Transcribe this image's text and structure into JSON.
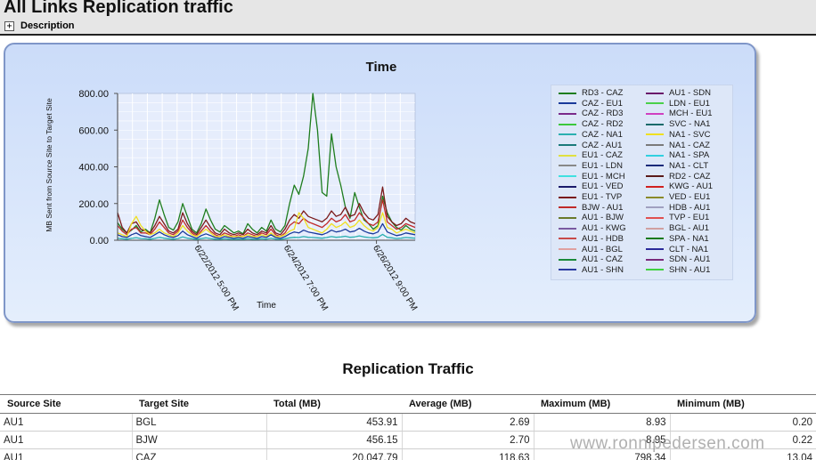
{
  "page": {
    "title": "All Links Replication traffic",
    "description_label": "Description",
    "description_toggle_symbol": "+"
  },
  "watermark": "www.ronnipedersen.com",
  "chart_data": {
    "type": "line",
    "title": "Time",
    "xlabel": "Time",
    "ylabel": "MB Sent from Source Site to Target Site",
    "ylim": [
      0,
      800
    ],
    "y_ticks": [
      "800.00",
      "600.00",
      "400.00",
      "200.00",
      "0.00"
    ],
    "x_tick_labels": [
      "6/22/2012 5:00 PM",
      "6/24/2012 7:00 PM",
      "6/26/2012 9:00 PM"
    ],
    "legend_position": "right",
    "legend": [
      {
        "name": "RD3 - CAZ",
        "color": "#1e7d1e"
      },
      {
        "name": "CAZ - EU1",
        "color": "#1a3a9a"
      },
      {
        "name": "CAZ - RD3",
        "color": "#7a2a8a"
      },
      {
        "name": "CAZ - RD2",
        "color": "#3cc83c"
      },
      {
        "name": "CAZ - NA1",
        "color": "#2ab0b0"
      },
      {
        "name": "CAZ - AU1",
        "color": "#1a7a7a"
      },
      {
        "name": "EU1 - CAZ",
        "color": "#e0e040"
      },
      {
        "name": "EU1 - LDN",
        "color": "#888888"
      },
      {
        "name": "EU1 - MCH",
        "color": "#40e0e0"
      },
      {
        "name": "EU1 - VED",
        "color": "#1a1a6a"
      },
      {
        "name": "EU1 - TVP",
        "color": "#7a1a1a"
      },
      {
        "name": "BJW - AU1",
        "color": "#c02a2a"
      },
      {
        "name": "AU1 - BJW",
        "color": "#6a7a2a"
      },
      {
        "name": "AU1 - KWG",
        "color": "#7a5aa0"
      },
      {
        "name": "AU1 - HDB",
        "color": "#c84a4a"
      },
      {
        "name": "AU1 - BGL",
        "color": "#e0a0a0"
      },
      {
        "name": "AU1 - CAZ",
        "color": "#1a8a3a"
      },
      {
        "name": "AU1 - SHN",
        "color": "#2a3aa0"
      },
      {
        "name": "AU1 - SDN",
        "color": "#6a1a6a"
      },
      {
        "name": "LDN - EU1",
        "color": "#4ad04a"
      },
      {
        "name": "MCH - EU1",
        "color": "#d040c0"
      },
      {
        "name": "SVC - NA1",
        "color": "#1a6a6a"
      },
      {
        "name": "NA1 - SVC",
        "color": "#f0e020"
      },
      {
        "name": "NA1 - CAZ",
        "color": "#7a7a7a"
      },
      {
        "name": "NA1 - SPA",
        "color": "#30d0e0"
      },
      {
        "name": "NA1 - CLT",
        "color": "#1a2a7a"
      },
      {
        "name": "RD2 - CAZ",
        "color": "#5a1a1a"
      },
      {
        "name": "KWG - AU1",
        "color": "#d02020"
      },
      {
        "name": "VED - EU1",
        "color": "#8a8a2a"
      },
      {
        "name": "HDB - AU1",
        "color": "#a0a0c0"
      },
      {
        "name": "TVP - EU1",
        "color": "#e05050"
      },
      {
        "name": "BGL - AU1",
        "color": "#d0a0a0"
      },
      {
        "name": "SPA - NA1",
        "color": "#1a7a1a"
      },
      {
        "name": "CLT - NA1",
        "color": "#2a2a9a"
      },
      {
        "name": "SDN - AU1",
        "color": "#7a2a7a"
      },
      {
        "name": "SHN - AU1",
        "color": "#40d040"
      }
    ],
    "series": [
      {
        "name": "RD3 - CAZ",
        "color": "#1e7d1e",
        "values": [
          95,
          60,
          40,
          55,
          80,
          45,
          60,
          40,
          120,
          220,
          140,
          70,
          55,
          100,
          200,
          130,
          60,
          40,
          90,
          170,
          110,
          60,
          45,
          80,
          60,
          40,
          50,
          35,
          90,
          60,
          40,
          70,
          50,
          110,
          60,
          45,
          80,
          200,
          300,
          250,
          350,
          500,
          800,
          600,
          260,
          240,
          580,
          400,
          300,
          180,
          120,
          260,
          180,
          110,
          90,
          60,
          80,
          240,
          150,
          100,
          70,
          55,
          80,
          60,
          50
        ]
      },
      {
        "name": "EU1 - TVP",
        "color": "#7a1a1a",
        "values": [
          150,
          70,
          40,
          90,
          100,
          60,
          50,
          40,
          80,
          130,
          90,
          50,
          40,
          60,
          150,
          90,
          50,
          30,
          70,
          110,
          70,
          40,
          30,
          60,
          40,
          30,
          40,
          30,
          60,
          40,
          30,
          50,
          40,
          80,
          40,
          30,
          60,
          110,
          140,
          120,
          160,
          130,
          120,
          110,
          100,
          120,
          160,
          130,
          140,
          180,
          130,
          140,
          200,
          150,
          120,
          110,
          140,
          290,
          130,
          100,
          80,
          90,
          120,
          100,
          90
        ]
      },
      {
        "name": "BJW - AU1",
        "color": "#c02a2a",
        "values": [
          80,
          50,
          30,
          60,
          70,
          40,
          40,
          30,
          60,
          100,
          70,
          40,
          30,
          50,
          110,
          70,
          40,
          20,
          50,
          80,
          50,
          30,
          20,
          40,
          30,
          20,
          30,
          20,
          40,
          30,
          20,
          40,
          30,
          60,
          30,
          20,
          40,
          80,
          100,
          90,
          120,
          100,
          90,
          80,
          70,
          90,
          120,
          100,
          110,
          140,
          100,
          110,
          150,
          120,
          90,
          80,
          100,
          220,
          100,
          80,
          60,
          70,
          90,
          80,
          70
        ]
      },
      {
        "name": "NA1 - SVC",
        "color": "#f0e020",
        "values": [
          40,
          30,
          20,
          90,
          130,
          80,
          50,
          30,
          40,
          60,
          40,
          30,
          20,
          40,
          80,
          50,
          30,
          20,
          40,
          60,
          40,
          20,
          20,
          30,
          20,
          20,
          20,
          20,
          30,
          20,
          20,
          30,
          20,
          40,
          20,
          20,
          30,
          50,
          60,
          150,
          120,
          70,
          60,
          50,
          40,
          60,
          90,
          70,
          80,
          100,
          70,
          80,
          110,
          80,
          60,
          50,
          70,
          150,
          70,
          60,
          40,
          50,
          60,
          50,
          40
        ]
      },
      {
        "name": "CAZ - EU1",
        "color": "#1a3a9a",
        "values": [
          30,
          20,
          15,
          30,
          40,
          25,
          20,
          15,
          30,
          45,
          30,
          20,
          15,
          25,
          50,
          30,
          20,
          10,
          25,
          35,
          25,
          15,
          10,
          20,
          15,
          10,
          15,
          10,
          20,
          15,
          10,
          20,
          15,
          30,
          15,
          10,
          20,
          35,
          45,
          40,
          55,
          45,
          40,
          35,
          30,
          40,
          55,
          45,
          50,
          60,
          45,
          50,
          65,
          50,
          40,
          35,
          45,
          90,
          45,
          35,
          25,
          30,
          40,
          35,
          30
        ]
      },
      {
        "name": "CAZ - NA1",
        "color": "#2ab0b0",
        "values": [
          10,
          8,
          6,
          10,
          14,
          9,
          8,
          6,
          10,
          16,
          11,
          8,
          6,
          9,
          18,
          11,
          8,
          5,
          9,
          13,
          9,
          6,
          5,
          8,
          6,
          5,
          6,
          5,
          8,
          6,
          5,
          8,
          6,
          11,
          6,
          5,
          8,
          13,
          16,
          15,
          20,
          16,
          15,
          13,
          11,
          15,
          20,
          16,
          18,
          22,
          16,
          18,
          24,
          18,
          15,
          13,
          16,
          32,
          16,
          13,
          9,
          11,
          15,
          13,
          11
        ]
      }
    ]
  },
  "table": {
    "title": "Replication Traffic",
    "columns": [
      "Source Site",
      "Target Site",
      "Total (MB)",
      "Average (MB)",
      "Maximum (MB)",
      "Minimum (MB)"
    ],
    "rows": [
      [
        "AU1",
        "BGL",
        "453.91",
        "2.69",
        "8.93",
        "0.20"
      ],
      [
        "AU1",
        "BJW",
        "456.15",
        "2.70",
        "8.95",
        "0.22"
      ],
      [
        "AU1",
        "CAZ",
        "20,047.79",
        "118.63",
        "798.34",
        "13.04"
      ]
    ]
  }
}
